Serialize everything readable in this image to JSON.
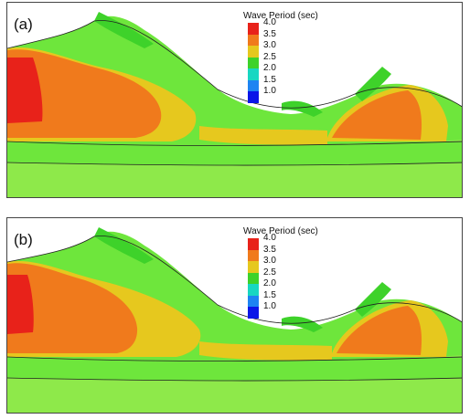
{
  "panels": [
    {
      "label": "(a)"
    },
    {
      "label": "(b)"
    }
  ],
  "legend": {
    "title": "Wave Period (sec)",
    "values": [
      "4.0",
      "3.5",
      "3.0",
      "2.5",
      "2.0",
      "1.5",
      "1.0"
    ],
    "colors": [
      "#e8221a",
      "#f07a1c",
      "#e6c81e",
      "#3ed22a",
      "#18d7c2",
      "#1e84f2",
      "#0b16e8"
    ]
  },
  "colors": {
    "land": "#ffffff",
    "water_period_3_0": "#6ee63c",
    "deep_water": "#8ee94a",
    "harbor_basin": "#f07a1c",
    "basin_core": "#e8221a",
    "transition": "#e6c81e"
  }
}
